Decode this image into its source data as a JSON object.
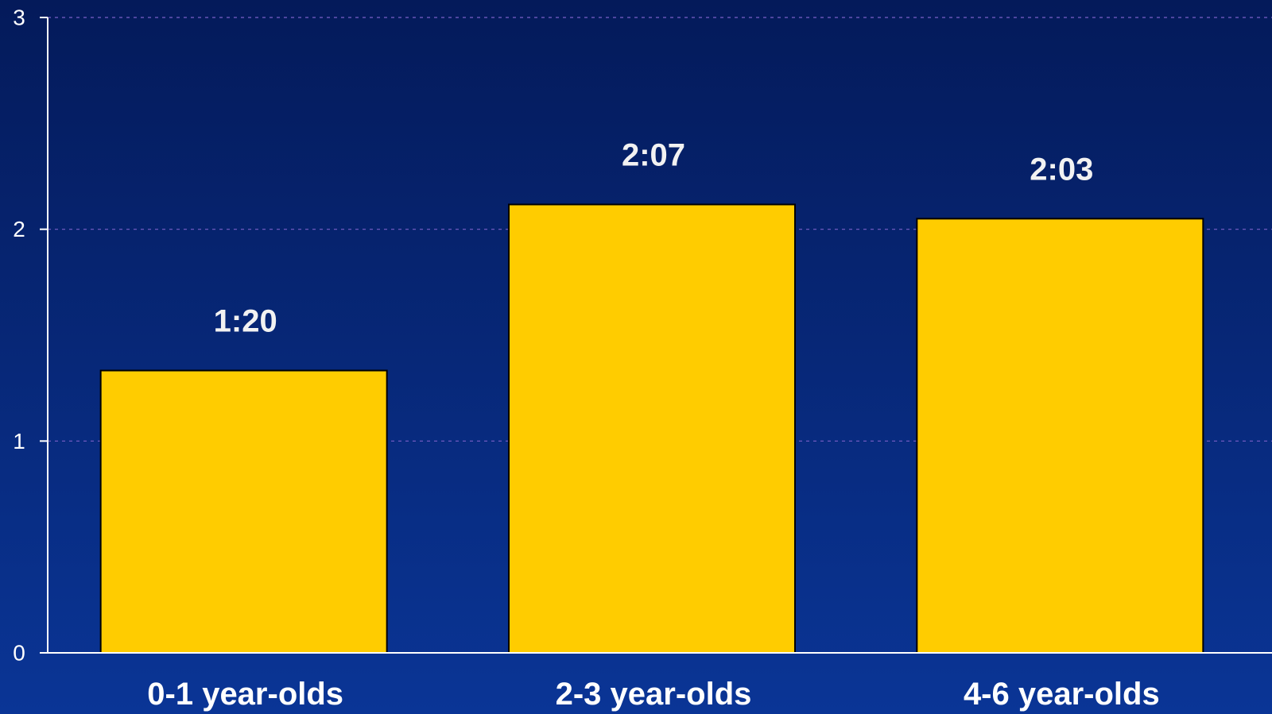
{
  "chart_data": {
    "type": "bar",
    "categories": [
      "0-1 year-olds",
      "2-3 year-olds",
      "4-6 year-olds"
    ],
    "values": [
      1.333,
      2.117,
      2.05
    ],
    "data_labels": [
      "1:20",
      "2:07",
      "2:03"
    ],
    "y_ticks": [
      "0",
      "1",
      "2",
      "3"
    ],
    "ylim": [
      0,
      3
    ],
    "grid": true,
    "legend": "none",
    "colors": {
      "background_top": "#041a5a",
      "background_bottom": "#0a3596",
      "bar_fill": "#ffcc00",
      "bar_stroke": "#000000",
      "axis": "#ffffff",
      "grid": "#7a5fc7"
    }
  }
}
